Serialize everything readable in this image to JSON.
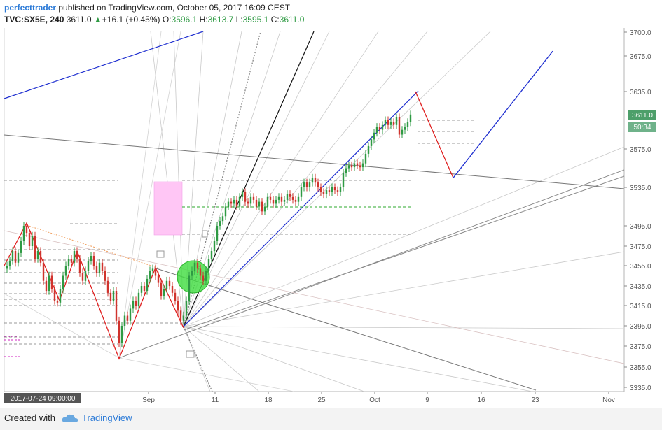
{
  "header": {
    "author": "perfecttrader",
    "published_text": "published on TradingView.com, October 05, 2017 16:09 CEST",
    "symbol": "TVC:SX5E, 240",
    "last": "3611.0",
    "change_arrow": "▲",
    "change": "+16.1 (+0.45%)",
    "open_label": "O:",
    "open": "3596.1",
    "high_label": "H:",
    "high": "3613.7",
    "low_label": "L:",
    "low": "3595.1",
    "close_label": "C:",
    "close": "3611.0"
  },
  "footer": {
    "created_with": "Created with",
    "brand": "TradingView"
  },
  "chart_data": {
    "type": "candlestick",
    "y_ticks": [
      3335,
      3355,
      3375,
      3395,
      3415,
      3435,
      3455,
      3475,
      3495,
      3535,
      3575,
      3635,
      3675,
      3700
    ],
    "y_tick_labels": [
      "3335.0",
      "3355.0",
      "3375.0",
      "3395.0",
      "3415.0",
      "3435.0",
      "3455.0",
      "3475.0",
      "3495.0",
      "3535.0",
      "3575.0",
      "3635.0",
      "3675.0",
      "3700.0"
    ],
    "x_tick_labels": [
      "Sep",
      "11",
      "18",
      "25",
      "Oct",
      "9",
      "16",
      "23",
      "Nov"
    ],
    "x_start_label": "2017-07-24 09:00:00",
    "price_label": "3611.0",
    "timer_label": "50:34",
    "colors": {
      "up": "#2e9a43",
      "down": "#d0332d",
      "zigzag": "#e02020",
      "channel": "#1f2fd0",
      "price_box": "#4d9f6a",
      "highlight_zone": "#ffc6f5",
      "circle": "#3fdc3f"
    },
    "zigzag_red": [
      3455,
      3498,
      3420,
      3470,
      3363,
      3453,
      3393
    ],
    "projection_red": [
      3635,
      3545
    ],
    "projection_blue": [
      3545,
      3680
    ]
  }
}
